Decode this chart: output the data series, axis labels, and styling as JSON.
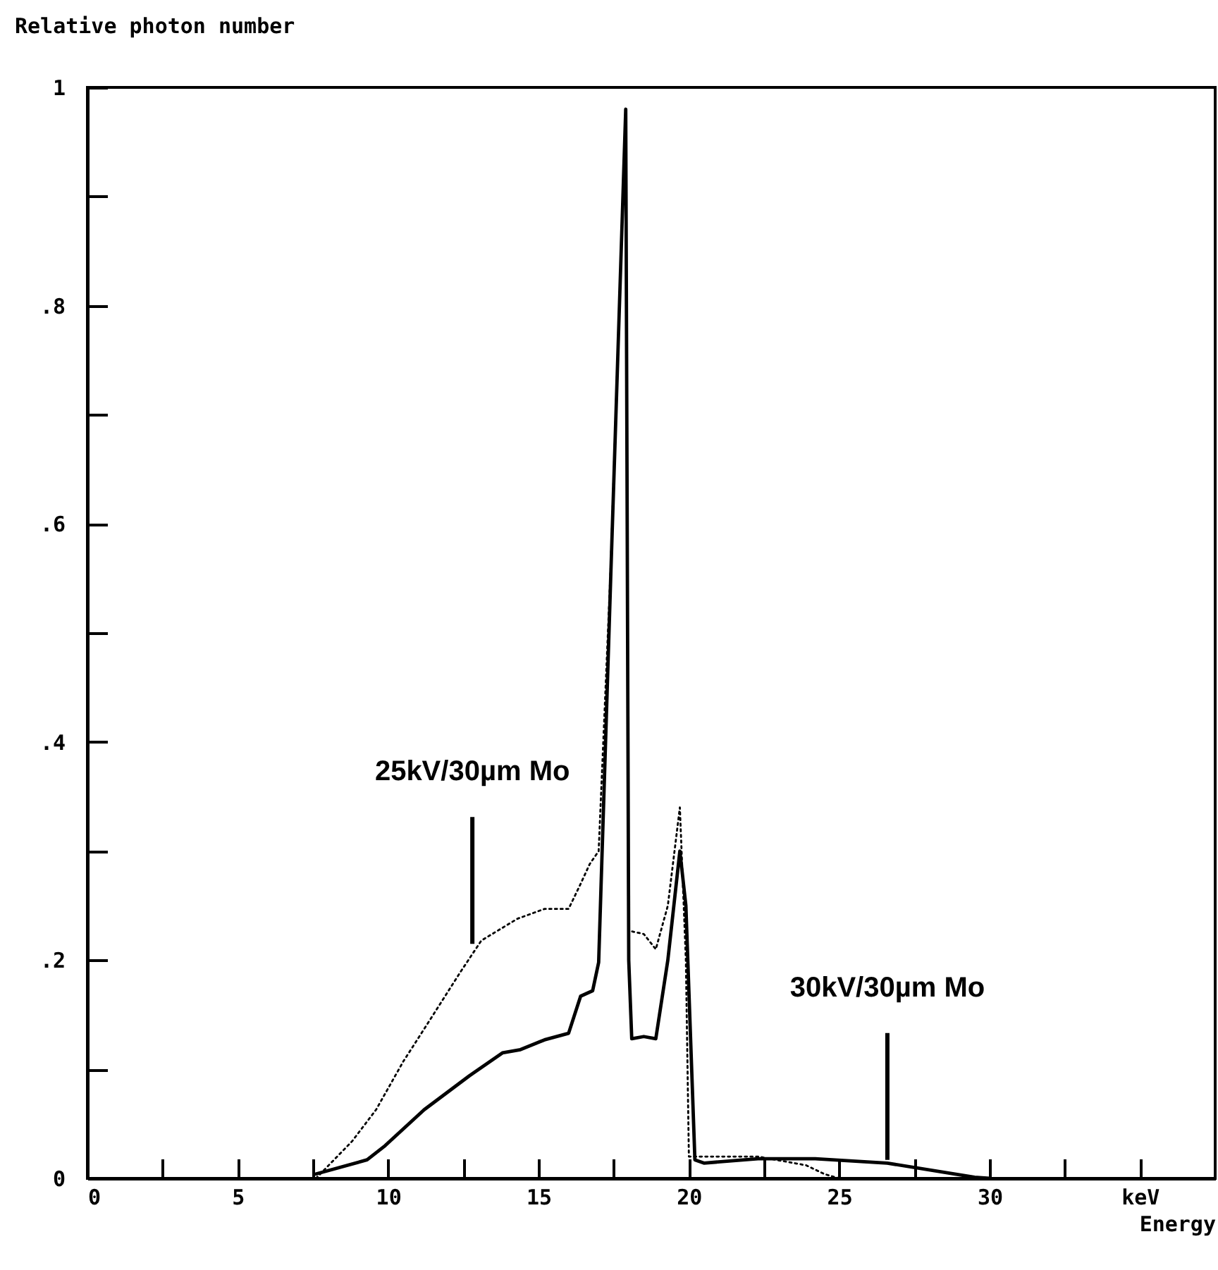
{
  "chart_data": {
    "type": "line",
    "xlabel": "Energy",
    "ylabel": "Relative photon number",
    "xlim": [
      0,
      37.5
    ],
    "ylim": [
      0,
      1
    ],
    "xticks": [
      0,
      {
        "value": 2.5,
        "label": null
      },
      5,
      {
        "value": 7.5,
        "label": null
      },
      10,
      {
        "value": 12.5,
        "label": null
      },
      15,
      {
        "value": 17.5,
        "label": null
      },
      20,
      {
        "value": 22.5,
        "label": null
      },
      25,
      {
        "value": 27.5,
        "label": null
      },
      30,
      {
        "value": 32.5,
        "label": null
      },
      {
        "value": 35,
        "label": "keV"
      }
    ],
    "yticks": [
      0,
      {
        "value": 0.1,
        "label": null
      },
      {
        "value": 0.2,
        "label": ".2"
      },
      {
        "value": 0.3,
        "label": null
      },
      {
        "value": 0.4,
        "label": ".4"
      },
      {
        "value": 0.5,
        "label": null
      },
      {
        "value": 0.6,
        "label": ".6"
      },
      {
        "value": 0.7,
        "label": null
      },
      {
        "value": 0.8,
        "label": ".8"
      },
      {
        "value": 0.9,
        "label": null
      },
      1
    ],
    "marker": "none",
    "series": [
      {
        "color": "#000000",
        "line_style": "dotted",
        "x": [
          7.6,
          8.8,
          9.6,
          10.5,
          11.5,
          12.4,
          13.1,
          14.3,
          15.2,
          16.0,
          16.4,
          16.7,
          17.0,
          17.4,
          17.9,
          18.0,
          18.5,
          18.9,
          19.3,
          19.7,
          19.9,
          20.0,
          20.5,
          22.3,
          23.9,
          24.5,
          25.0
        ],
        "values": [
          0,
          0.034,
          0.063,
          0.107,
          0.15,
          0.189,
          0.218,
          0.238,
          0.247,
          0.247,
          0.27,
          0.288,
          0.3,
          0.56,
          0.98,
          0.227,
          0.224,
          0.21,
          0.25,
          0.34,
          0.2,
          0.02,
          0.02,
          0.02,
          0.012,
          0.004,
          0
        ]
      },
      {
        "color": "#000000",
        "line_style": "solid",
        "x": [
          7.6,
          9.3,
          9.9,
          11.2,
          12.7,
          13.8,
          14.4,
          15.2,
          16.0,
          16.4,
          16.8,
          17.0,
          17.4,
          17.9,
          18.0,
          18.1,
          18.5,
          18.9,
          19.3,
          19.7,
          19.9,
          20.2,
          20.5,
          22.3,
          24.2,
          26.6,
          29.5,
          30.0
        ],
        "values": [
          0.004,
          0.017,
          0.03,
          0.063,
          0.094,
          0.115,
          0.118,
          0.127,
          0.133,
          0.167,
          0.172,
          0.198,
          0.55,
          0.98,
          0.2,
          0.128,
          0.13,
          0.128,
          0.2,
          0.3,
          0.25,
          0.017,
          0.014,
          0.018,
          0.018,
          0.014,
          0.001,
          0
        ]
      }
    ],
    "annotations": [
      {
        "text": "25kV/30µm Mo",
        "x": 12.8,
        "y": 0.215
      },
      {
        "text": "30kV/30µm Mo",
        "x": 26.6,
        "y": 0.017
      }
    ]
  }
}
